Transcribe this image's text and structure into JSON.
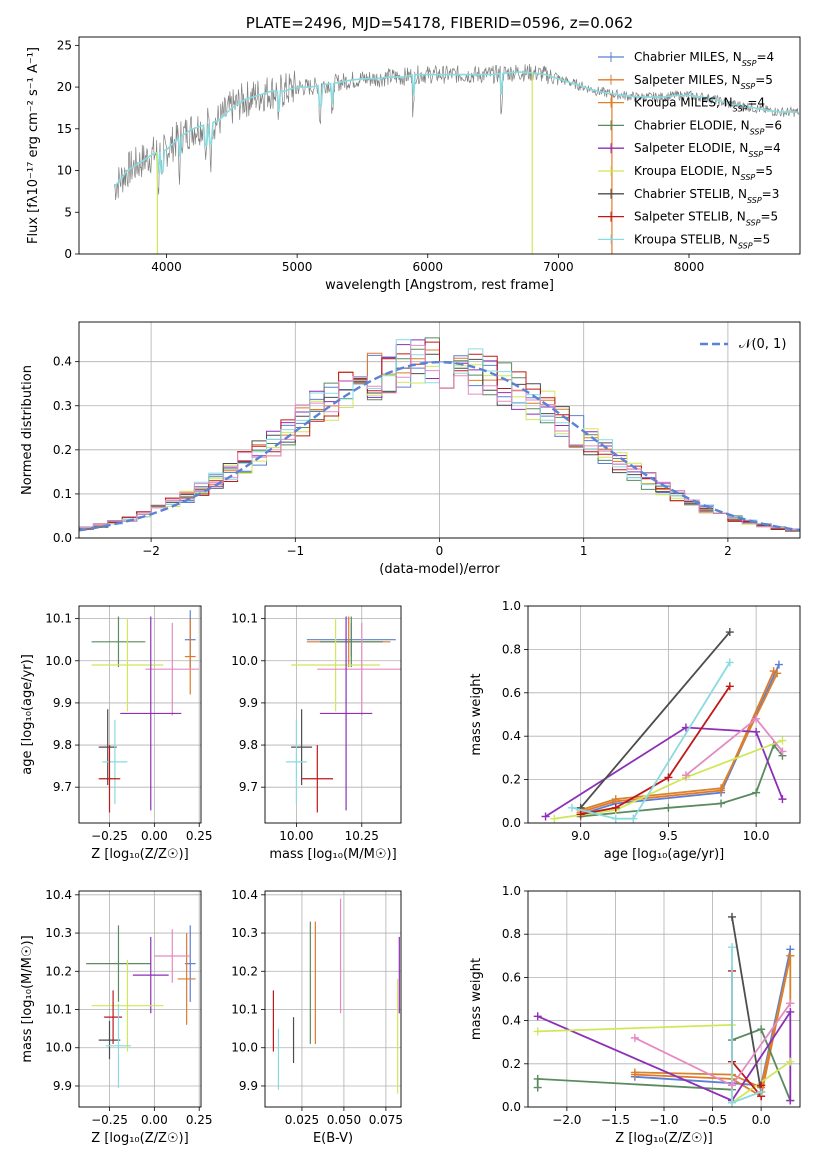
{
  "colors": {
    "chabrier_miles": "#5b7fd6",
    "salpeter_miles": "#e07a2a",
    "kroupa_miles": "#d9822b",
    "chabrier_elodie": "#5a8a5f",
    "salpeter_elodie": "#8e2fb8",
    "kroupa_elodie": "#cfe85a",
    "chabrier_stelib": "#4d4d4d",
    "salpeter_stelib": "#c01818",
    "kroupa_stelib": "#8adbe0",
    "pink": "#e58ac4",
    "normal": "#5b82d6",
    "grid": "#b0b0b0"
  },
  "chart_data": [
    {
      "id": "spectrum",
      "type": "line",
      "title": "PLATE=2496, MJD=54178, FIBERID=0596, z=0.062",
      "xlabel": "wavelength [Angstrom, rest frame]",
      "ylabel": "Flux [fλ10⁻¹⁷ erg cm⁻² s⁻¹ A⁻¹]",
      "xlim": [
        3330,
        8850
      ],
      "ylim": [
        0,
        26
      ],
      "xticks": [
        "4000",
        "5000",
        "6000",
        "7000",
        "8000"
      ],
      "yticks": [
        "0",
        "5",
        "10",
        "15",
        "20",
        "25"
      ],
      "grid": false,
      "legend_position": "upper-right",
      "continuum": [
        [
          3600,
          8
        ],
        [
          3700,
          10
        ],
        [
          3800,
          11
        ],
        [
          3900,
          12
        ],
        [
          4000,
          12.5
        ],
        [
          4100,
          14
        ],
        [
          4200,
          15
        ],
        [
          4300,
          15.5
        ],
        [
          4400,
          16
        ],
        [
          4500,
          17.5
        ],
        [
          4600,
          18.5
        ],
        [
          4700,
          19
        ],
        [
          4800,
          19.5
        ],
        [
          4900,
          19.5
        ],
        [
          5000,
          20
        ],
        [
          5100,
          20
        ],
        [
          5200,
          20.3
        ],
        [
          5300,
          20.5
        ],
        [
          5400,
          20.8
        ],
        [
          5500,
          21
        ],
        [
          5600,
          21
        ],
        [
          5700,
          21.2
        ],
        [
          5800,
          21.2
        ],
        [
          5900,
          21.5
        ],
        [
          6000,
          21.5
        ],
        [
          6100,
          21.5
        ],
        [
          6200,
          21.5
        ],
        [
          6300,
          21.5
        ],
        [
          6400,
          21.5
        ],
        [
          6500,
          21.5
        ],
        [
          6600,
          21.7
        ],
        [
          6700,
          21.8
        ],
        [
          6800,
          21.7
        ],
        [
          6900,
          21.5
        ],
        [
          7000,
          21
        ],
        [
          7100,
          20.5
        ],
        [
          7200,
          20
        ],
        [
          7300,
          19.5
        ],
        [
          7400,
          19.2
        ],
        [
          7500,
          19
        ],
        [
          7600,
          18.8
        ],
        [
          7700,
          18.8
        ],
        [
          7800,
          18.8
        ],
        [
          7900,
          19
        ],
        [
          8000,
          19
        ],
        [
          8100,
          18.8
        ],
        [
          8200,
          18.5
        ],
        [
          8300,
          18
        ],
        [
          8400,
          17.8
        ],
        [
          8500,
          17.5
        ],
        [
          8600,
          17.2
        ],
        [
          8700,
          17
        ],
        [
          8800,
          17
        ]
      ],
      "series": [
        {
          "name": "Chabrier MILES",
          "nssp": "4"
        },
        {
          "name": "Salpeter MILES",
          "nssp": "5"
        },
        {
          "name": "Kroupa MILES",
          "nssp": "4"
        },
        {
          "name": "Chabrier ELODIE",
          "nssp": "6"
        },
        {
          "name": "Salpeter ELODIE",
          "nssp": "4"
        },
        {
          "name": "Kroupa ELODIE",
          "nssp": "5"
        },
        {
          "name": "Chabrier STELIB",
          "nssp": "3"
        },
        {
          "name": "Salpeter STELIB",
          "nssp": "5"
        },
        {
          "name": "Kroupa STELIB",
          "nssp": "5"
        }
      ]
    },
    {
      "id": "residuals",
      "type": "histogram",
      "xlabel": "(data-model)/error",
      "ylabel": "Normed distribution",
      "xlim": [
        -2.5,
        2.5
      ],
      "ylim": [
        0,
        0.49
      ],
      "xticks": [
        "−2",
        "−1",
        "0",
        "1",
        "2"
      ],
      "yticks": [
        "0.0",
        "0.1",
        "0.2",
        "0.3",
        "0.4"
      ],
      "grid": true,
      "legend_label": "𝒩(0, 1)",
      "legend_position": "upper-right",
      "bin_width": 0.1,
      "start": -2.5
    },
    {
      "id": "age_vs_Z",
      "type": "errorbar",
      "xlabel": "Z [log₁₀(Z/Z☉)]",
      "ylabel": "age  [log₁₀(age/yr)]",
      "xlim": [
        -0.42,
        0.26
      ],
      "ylim": [
        9.615,
        10.13
      ],
      "xticks": [
        "−0.25",
        "0.00",
        "0.25"
      ],
      "yticks": [
        "9.7",
        "9.8",
        "9.9",
        "10.0",
        "10.1"
      ],
      "grid": true,
      "points": [
        {
          "c": "chabrier_miles",
          "x": 0.2,
          "xe": 0.03,
          "y": 10.05,
          "ye": 0.07
        },
        {
          "c": "salpeter_miles",
          "x": 0.2,
          "xe": 0.03,
          "y": 10.01,
          "ye": 0.09
        },
        {
          "c": "chabrier_elodie",
          "x": -0.2,
          "xe": 0.15,
          "y": 10.045,
          "ye": 0.06
        },
        {
          "c": "kroupa_elodie",
          "x": -0.15,
          "xe": 0.2,
          "y": 9.99,
          "ye": 0.11
        },
        {
          "c": "pink",
          "x": 0.1,
          "xe": 0.15,
          "y": 9.98,
          "ye": 0.11
        },
        {
          "c": "salpeter_elodie",
          "x": -0.02,
          "xe": 0.17,
          "y": 9.875,
          "ye": 0.23
        },
        {
          "c": "chabrier_stelib",
          "x": -0.26,
          "xe": 0.05,
          "y": 9.795,
          "ye": 0.09
        },
        {
          "c": "kroupa_stelib",
          "x": -0.22,
          "xe": 0.07,
          "y": 9.76,
          "ye": 0.1
        },
        {
          "c": "salpeter_stelib",
          "x": -0.25,
          "xe": 0.06,
          "y": 9.72,
          "ye": 0.08
        }
      ]
    },
    {
      "id": "age_vs_mass",
      "type": "errorbar",
      "xlabel": "mass [log₁₀(M/M☉)]",
      "ylabel": "",
      "xlim": [
        9.88,
        10.4
      ],
      "ylim": [
        9.615,
        10.13
      ],
      "xticks": [
        "10.00",
        "10.25"
      ],
      "yticks": [
        "9.7",
        "9.8",
        "9.9",
        "10.0",
        "10.1"
      ],
      "grid": true,
      "points": [
        {
          "c": "chabrier_miles",
          "x": 10.21,
          "xe": 0.17,
          "y": 10.05,
          "ye": 0.04
        },
        {
          "c": "salpeter_miles",
          "x": 10.2,
          "xe": 0.16,
          "y": 10.045,
          "ye": 0.06
        },
        {
          "c": "chabrier_elodie",
          "x": 10.21,
          "xe": 0.12,
          "y": 10.045,
          "ye": 0.06
        },
        {
          "c": "kroupa_elodie",
          "x": 10.15,
          "xe": 0.17,
          "y": 9.99,
          "ye": 0.11
        },
        {
          "c": "pink",
          "x": 10.25,
          "xe": 0.17,
          "y": 9.98,
          "ye": 0.11
        },
        {
          "c": "salpeter_elodie",
          "x": 10.19,
          "xe": 0.1,
          "y": 9.875,
          "ye": 0.23
        },
        {
          "c": "chabrier_stelib",
          "x": 10.02,
          "xe": 0.04,
          "y": 9.795,
          "ye": 0.09
        },
        {
          "c": "kroupa_stelib",
          "x": 10.0,
          "xe": 0.04,
          "y": 9.76,
          "ye": 0.1
        },
        {
          "c": "salpeter_stelib",
          "x": 10.08,
          "xe": 0.06,
          "y": 9.72,
          "ye": 0.08
        }
      ]
    },
    {
      "id": "weight_vs_age",
      "type": "line",
      "xlabel": "age  [log₁₀(age/yr)]",
      "ylabel": "mass weight",
      "xlim": [
        8.7,
        10.25
      ],
      "ylim": [
        0,
        1
      ],
      "xticks": [
        "9.0",
        "9.5",
        "10.0"
      ],
      "yticks": [
        "0.0",
        "0.2",
        "0.4",
        "0.6",
        "0.8",
        "1.0"
      ],
      "grid": true,
      "series": [
        {
          "c": "chabrier_miles",
          "pts": [
            [
              9.0,
              0.04
            ],
            [
              9.2,
              0.09
            ],
            [
              9.8,
              0.14
            ],
            [
              10.13,
              0.73
            ]
          ]
        },
        {
          "c": "salpeter_miles",
          "pts": [
            [
              9.0,
              0.05
            ],
            [
              9.2,
              0.1
            ],
            [
              9.8,
              0.15
            ],
            [
              10.1,
              0.7
            ]
          ]
        },
        {
          "c": "kroupa_miles",
          "pts": [
            [
              9.0,
              0.06
            ],
            [
              9.2,
              0.11
            ],
            [
              9.8,
              0.16
            ],
            [
              10.12,
              0.69
            ]
          ]
        },
        {
          "c": "chabrier_elodie",
          "pts": [
            [
              9.0,
              0.03
            ],
            [
              9.5,
              0.07
            ],
            [
              9.8,
              0.09
            ],
            [
              10.0,
              0.14
            ],
            [
              10.1,
              0.36
            ],
            [
              10.15,
              0.31
            ]
          ]
        },
        {
          "c": "salpeter_elodie",
          "pts": [
            [
              8.8,
              0.03
            ],
            [
              9.6,
              0.44
            ],
            [
              10.0,
              0.42
            ],
            [
              10.15,
              0.11
            ]
          ]
        },
        {
          "c": "kroupa_elodie",
          "pts": [
            [
              8.85,
              0.02
            ],
            [
              9.2,
              0.06
            ],
            [
              9.6,
              0.21
            ],
            [
              10.15,
              0.38
            ]
          ]
        },
        {
          "c": "chabrier_stelib",
          "pts": [
            [
              9.0,
              0.07
            ],
            [
              9.85,
              0.88
            ]
          ]
        },
        {
          "c": "salpeter_stelib",
          "pts": [
            [
              9.0,
              0.04
            ],
            [
              9.2,
              0.07
            ],
            [
              9.5,
              0.21
            ],
            [
              9.85,
              0.63
            ]
          ]
        },
        {
          "c": "kroupa_stelib",
          "pts": [
            [
              8.95,
              0.07
            ],
            [
              9.2,
              0.02
            ],
            [
              9.3,
              0.02
            ],
            [
              9.85,
              0.74
            ]
          ]
        },
        {
          "c": "pink",
          "pts": [
            [
              9.6,
              0.22
            ],
            [
              10.0,
              0.48
            ],
            [
              10.15,
              0.33
            ]
          ]
        }
      ]
    },
    {
      "id": "mass_vs_Z",
      "type": "errorbar",
      "xlabel": "Z [log₁₀(Z/Z☉)]",
      "ylabel": "mass [log₁₀(M/M☉)]",
      "xlim": [
        -0.42,
        0.26
      ],
      "ylim": [
        9.845,
        10.41
      ],
      "xticks": [
        "−0.25",
        "0.00",
        "0.25"
      ],
      "yticks": [
        "9.9",
        "10.0",
        "10.1",
        "10.2",
        "10.3",
        "10.4"
      ],
      "grid": true,
      "points": [
        {
          "c": "chabrier_miles",
          "x": 0.2,
          "xe": 0.03,
          "y": 10.22,
          "ye": 0.1
        },
        {
          "c": "salpeter_miles",
          "x": 0.18,
          "xe": 0.05,
          "y": 10.18,
          "ye": 0.12
        },
        {
          "c": "chabrier_elodie",
          "x": -0.2,
          "xe": 0.18,
          "y": 10.22,
          "ye": 0.1
        },
        {
          "c": "salpeter_elodie",
          "x": -0.02,
          "xe": 0.1,
          "y": 10.19,
          "ye": 0.1
        },
        {
          "c": "pink",
          "x": 0.1,
          "xe": 0.1,
          "y": 10.24,
          "ye": 0.07
        },
        {
          "c": "kroupa_elodie",
          "x": -0.15,
          "xe": 0.2,
          "y": 10.11,
          "ye": 0.12
        },
        {
          "c": "salpeter_stelib",
          "x": -0.23,
          "xe": 0.05,
          "y": 10.08,
          "ye": 0.07
        },
        {
          "c": "chabrier_stelib",
          "x": -0.25,
          "xe": 0.06,
          "y": 10.02,
          "ye": 0.05
        },
        {
          "c": "kroupa_stelib",
          "x": -0.2,
          "xe": 0.07,
          "y": 10.005,
          "ye": 0.11
        }
      ]
    },
    {
      "id": "mass_vs_ebv",
      "type": "errorbar",
      "xlabel": "E(B-V)",
      "ylabel": "",
      "xlim": [
        0.003,
        0.084
      ],
      "ylim": [
        9.845,
        10.41
      ],
      "xticks": [
        "0.025",
        "0.050",
        "0.075"
      ],
      "yticks": [
        "9.9",
        "10.0",
        "10.1",
        "10.2",
        "10.3",
        "10.4"
      ],
      "grid": true,
      "points": [
        {
          "c": "salpeter_stelib",
          "x": 0.008,
          "xe": 0,
          "y": 10.07,
          "ye": 0.08
        },
        {
          "c": "kroupa_stelib",
          "x": 0.011,
          "xe": 0,
          "y": 9.97,
          "ye": 0.08
        },
        {
          "c": "chabrier_stelib",
          "x": 0.02,
          "xe": 0,
          "y": 10.02,
          "ye": 0.06
        },
        {
          "c": "chabrier_elodie",
          "x": 0.03,
          "xe": 0,
          "y": 10.17,
          "ye": 0.16
        },
        {
          "c": "salpeter_miles",
          "x": 0.033,
          "xe": 0,
          "y": 10.17,
          "ye": 0.16
        },
        {
          "c": "pink",
          "x": 0.048,
          "xe": 0,
          "y": 10.24,
          "ye": 0.15
        },
        {
          "c": "salpeter_elodie",
          "x": 0.083,
          "xe": 0,
          "y": 10.19,
          "ye": 0.1
        },
        {
          "c": "kroupa_elodie",
          "x": 0.082,
          "xe": 0,
          "y": 10.03,
          "ye": 0.15
        }
      ]
    },
    {
      "id": "weight_vs_Z",
      "type": "line",
      "xlabel": "Z [log₁₀(Z/Z☉)]",
      "ylabel": "mass weight",
      "xlim": [
        -2.4,
        0.4
      ],
      "ylim": [
        0,
        1
      ],
      "xticks": [
        "−2.0",
        "−1.5",
        "−1.0",
        "−0.5",
        "0.0"
      ],
      "yticks": [
        "0.0",
        "0.2",
        "0.4",
        "0.6",
        "0.8",
        "1.0"
      ],
      "grid": true,
      "series": [
        {
          "c": "chabrier_miles",
          "pts": [
            [
              -1.3,
              0.14
            ],
            [
              -0.3,
              0.11
            ],
            [
              0.0,
              0.1
            ],
            [
              0.3,
              0.73
            ]
          ]
        },
        {
          "c": "salpeter_miles",
          "pts": [
            [
              -1.3,
              0.15
            ],
            [
              -0.3,
              0.13
            ],
            [
              0.0,
              0.05
            ],
            [
              0.3,
              0.7
            ]
          ]
        },
        {
          "c": "kroupa_miles",
          "pts": [
            [
              -1.3,
              0.16
            ],
            [
              -0.3,
              0.15
            ],
            [
              0.0,
              0.09
            ],
            [
              0.3,
              0.7
            ],
            [
              0.3,
              0.48
            ]
          ]
        },
        {
          "c": "chabrier_elodie",
          "pts": [
            [
              -2.3,
              0.09
            ],
            [
              -2.3,
              0.13
            ],
            [
              -0.3,
              0.08
            ],
            [
              -0.3,
              0.31
            ],
            [
              0.0,
              0.36
            ],
            [
              0.3,
              0.03
            ]
          ]
        },
        {
          "c": "salpeter_elodie",
          "pts": [
            [
              -2.3,
              0.42
            ],
            [
              -0.3,
              0.03
            ],
            [
              0.3,
              0.44
            ],
            [
              0.3,
              0.03
            ]
          ]
        },
        {
          "c": "kroupa_elodie",
          "pts": [
            [
              -2.3,
              0.35
            ],
            [
              -0.3,
              0.38
            ],
            [
              -0.3,
              0.02
            ],
            [
              0.3,
              0.21
            ]
          ]
        },
        {
          "c": "chabrier_stelib",
          "pts": [
            [
              -0.3,
              0.88
            ],
            [
              0.0,
              0.07
            ]
          ]
        },
        {
          "c": "salpeter_stelib",
          "pts": [
            [
              -0.3,
              0.63
            ],
            [
              -0.3,
              0.21
            ],
            [
              0.0,
              0.05
            ],
            [
              0.0,
              0.1
            ]
          ]
        },
        {
          "c": "kroupa_stelib",
          "pts": [
            [
              -0.3,
              0.74
            ],
            [
              -0.3,
              0.02
            ],
            [
              0.0,
              0.07
            ]
          ]
        },
        {
          "c": "pink",
          "pts": [
            [
              -1.3,
              0.32
            ],
            [
              -0.3,
              0.1
            ],
            [
              0.3,
              0.48
            ]
          ]
        }
      ]
    }
  ]
}
